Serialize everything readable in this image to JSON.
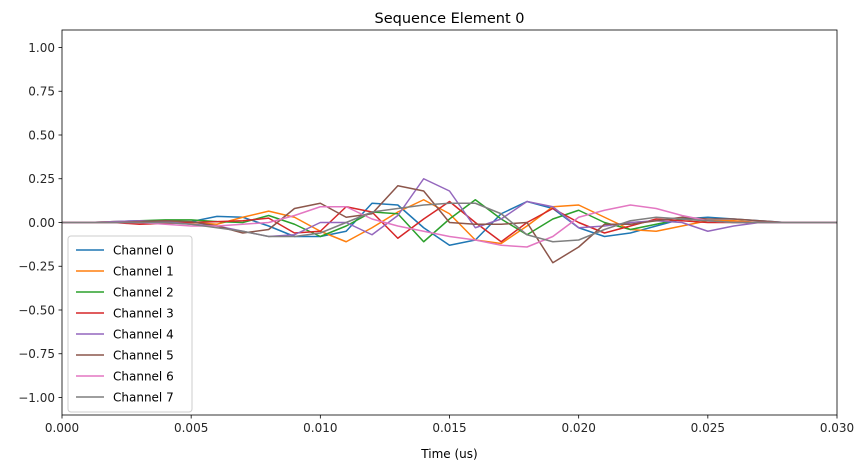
{
  "chart_data": {
    "type": "line",
    "title": "Sequence Element 0",
    "xlabel": "Time (us)",
    "ylabel": "",
    "xlim": [
      0.0,
      0.03
    ],
    "ylim": [
      -1.1,
      1.1
    ],
    "x_ticks": [
      "0.000",
      "0.005",
      "0.010",
      "0.015",
      "0.020",
      "0.025",
      "0.030"
    ],
    "x_tick_values": [
      0.0,
      0.005,
      0.01,
      0.015,
      0.02,
      0.025,
      0.03
    ],
    "y_ticks": [
      "−1.00",
      "−0.75",
      "−0.50",
      "−0.25",
      "0.00",
      "0.25",
      "0.50",
      "0.75",
      "1.00"
    ],
    "y_tick_values": [
      -1.0,
      -0.75,
      -0.5,
      -0.25,
      0.0,
      0.25,
      0.5,
      0.75,
      1.0
    ],
    "grid": false,
    "legend_position": "lower-left",
    "x": [
      0.0,
      0.001,
      0.002,
      0.003,
      0.004,
      0.005,
      0.006,
      0.007,
      0.008,
      0.009,
      0.01,
      0.011,
      0.012,
      0.013,
      0.014,
      0.015,
      0.016,
      0.017,
      0.018,
      0.019,
      0.02,
      0.021,
      0.022,
      0.023,
      0.024,
      0.025,
      0.026,
      0.027,
      0.028,
      0.029,
      0.03
    ],
    "series": [
      {
        "name": "Channel 0",
        "color": "#1f77b4",
        "values": [
          0.0,
          0.0,
          0.005,
          0.01,
          0.005,
          0.005,
          0.035,
          0.03,
          -0.02,
          -0.08,
          -0.08,
          -0.05,
          0.11,
          0.1,
          -0.03,
          -0.13,
          -0.1,
          0.05,
          0.12,
          0.08,
          -0.03,
          -0.08,
          -0.06,
          -0.02,
          0.02,
          0.03,
          0.02,
          0.01,
          0.0,
          0.0,
          0.0
        ]
      },
      {
        "name": "Channel 1",
        "color": "#ff7f0e",
        "values": [
          0.0,
          0.0,
          0.005,
          0.005,
          0.01,
          0.0,
          -0.01,
          0.03,
          0.065,
          0.03,
          -0.05,
          -0.11,
          -0.03,
          0.06,
          0.13,
          0.05,
          -0.1,
          -0.12,
          -0.02,
          0.09,
          0.1,
          0.03,
          -0.04,
          -0.05,
          -0.02,
          0.01,
          0.01,
          0.0,
          0.0,
          0.0,
          0.0
        ]
      },
      {
        "name": "Channel 2",
        "color": "#2ca02c",
        "values": [
          0.0,
          0.0,
          0.0,
          0.01,
          0.015,
          0.015,
          0.005,
          0.0,
          0.04,
          -0.01,
          -0.08,
          -0.02,
          0.06,
          0.05,
          -0.11,
          0.02,
          0.13,
          0.02,
          -0.07,
          0.02,
          0.07,
          0.0,
          -0.04,
          -0.01,
          0.02,
          0.01,
          0.0,
          0.0,
          0.0,
          0.0,
          0.0
        ]
      },
      {
        "name": "Channel 3",
        "color": "#d62728",
        "values": [
          0.0,
          0.0,
          0.0,
          -0.01,
          -0.005,
          0.0,
          0.005,
          0.01,
          0.025,
          -0.06,
          -0.05,
          0.09,
          0.06,
          -0.09,
          0.02,
          0.12,
          0.0,
          -0.11,
          0.0,
          0.08,
          0.0,
          -0.06,
          -0.02,
          0.02,
          0.01,
          0.0,
          0.0,
          0.0,
          0.0,
          0.0,
          0.0
        ]
      },
      {
        "name": "Channel 4",
        "color": "#9467bd",
        "values": [
          0.0,
          0.0,
          0.005,
          0.01,
          0.005,
          -0.01,
          -0.02,
          -0.05,
          -0.08,
          -0.07,
          0.0,
          0.0,
          -0.07,
          0.04,
          0.25,
          0.18,
          -0.03,
          0.02,
          0.12,
          0.09,
          -0.03,
          -0.02,
          0.0,
          0.01,
          0.0,
          -0.05,
          -0.02,
          0.0,
          0.0,
          0.0,
          0.0
        ]
      },
      {
        "name": "Channel 5",
        "color": "#8c564b",
        "values": [
          0.0,
          0.0,
          0.0,
          0.005,
          0.01,
          0.005,
          -0.02,
          -0.06,
          -0.04,
          0.08,
          0.11,
          0.03,
          0.05,
          0.21,
          0.18,
          0.0,
          -0.01,
          -0.01,
          0.0,
          -0.23,
          -0.14,
          -0.01,
          -0.01,
          0.01,
          0.03,
          0.02,
          0.02,
          0.01,
          0.0,
          0.0,
          0.0
        ]
      },
      {
        "name": "Channel 6",
        "color": "#e377c2",
        "values": [
          0.0,
          0.0,
          0.0,
          0.0,
          -0.01,
          -0.02,
          -0.02,
          -0.01,
          0.0,
          0.04,
          0.09,
          0.09,
          0.02,
          -0.02,
          -0.05,
          -0.08,
          -0.1,
          -0.13,
          -0.14,
          -0.08,
          0.03,
          0.07,
          0.1,
          0.08,
          0.04,
          0.01,
          0.0,
          0.0,
          0.0,
          0.0,
          0.0
        ]
      },
      {
        "name": "Channel 7",
        "color": "#7f7f7f",
        "values": [
          0.0,
          0.0,
          0.0,
          0.0,
          0.0,
          -0.01,
          -0.03,
          -0.05,
          -0.08,
          -0.08,
          -0.06,
          0.0,
          0.06,
          0.08,
          0.1,
          0.11,
          0.11,
          0.05,
          -0.07,
          -0.11,
          -0.1,
          -0.04,
          0.01,
          0.03,
          0.02,
          0.01,
          0.0,
          0.0,
          0.0,
          0.0,
          0.0
        ]
      }
    ]
  }
}
